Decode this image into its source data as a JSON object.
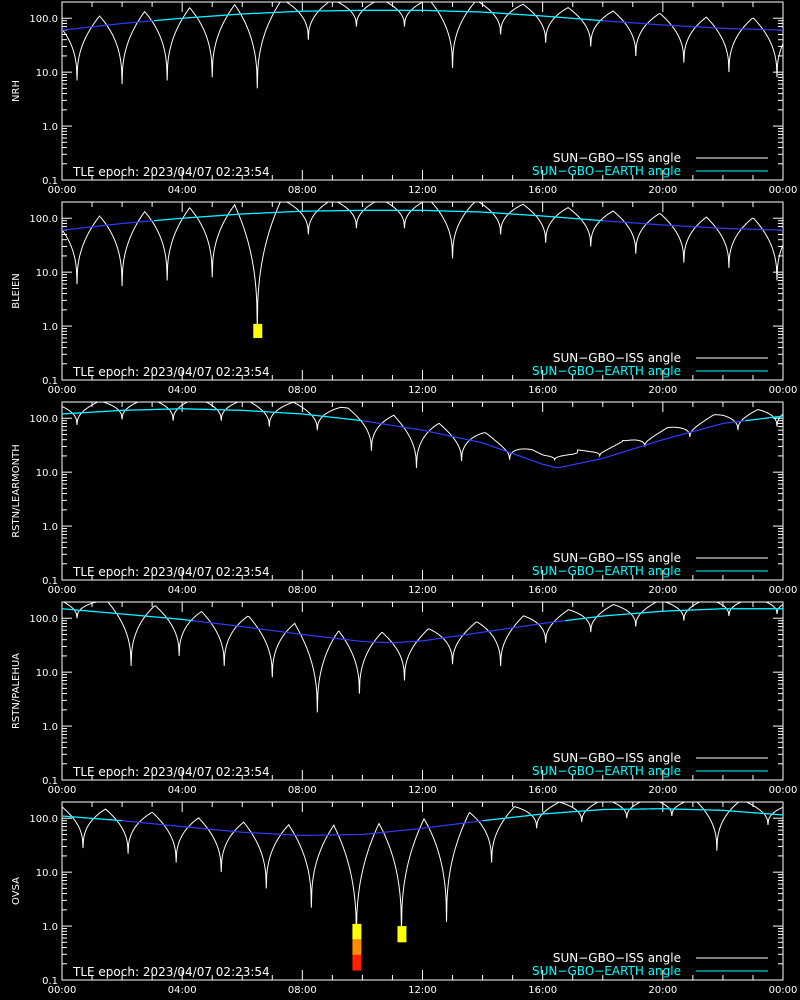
{
  "chart_data": [
    {
      "type": "line",
      "ylabel": "NRH",
      "epoch_label": "TLE epoch: 2023/04/07 02:23:54",
      "legend": [
        {
          "name": "SUN−GBO−ISS angle",
          "color": "#ffffff"
        },
        {
          "name": "SUN−GBO−EARTH angle",
          "color": "#00ffff"
        }
      ],
      "xlim": [
        0,
        24
      ],
      "ylim": [
        0.1,
        200
      ],
      "yscale": "log",
      "xticks": [
        "00:00",
        "04:00",
        "08:00",
        "12:00",
        "16:00",
        "20:00",
        "00:00"
      ],
      "yticks": [
        "0.1",
        "1.0",
        "10.0",
        "100.0"
      ],
      "earth": {
        "x": [
          0,
          2,
          4,
          6,
          8,
          10,
          12,
          14,
          16,
          18,
          20,
          22,
          24
        ],
        "y": [
          60,
          80,
          100,
          120,
          135,
          140,
          140,
          130,
          110,
          90,
          75,
          65,
          60
        ]
      },
      "iss_minima": [
        [
          0.5,
          7
        ],
        [
          2,
          6
        ],
        [
          3.5,
          7
        ],
        [
          5,
          8
        ],
        [
          6.5,
          5
        ],
        [
          8.2,
          40
        ],
        [
          9.8,
          70
        ],
        [
          11.4,
          70
        ],
        [
          13,
          12
        ],
        [
          14.6,
          50
        ],
        [
          16.1,
          35
        ],
        [
          17.6,
          30
        ],
        [
          19.1,
          20
        ],
        [
          20.7,
          15
        ],
        [
          22.2,
          10
        ],
        [
          23.8,
          8
        ]
      ],
      "markers": []
    },
    {
      "type": "line",
      "ylabel": "BLEIEN",
      "epoch_label": "TLE epoch: 2023/04/07 02:23:54",
      "legend": [
        {
          "name": "SUN−GBO−ISS angle",
          "color": "#ffffff"
        },
        {
          "name": "SUN−GBO−EARTH angle",
          "color": "#00ffff"
        }
      ],
      "xlim": [
        0,
        24
      ],
      "ylim": [
        0.1,
        200
      ],
      "yscale": "log",
      "xticks": [
        "00:00",
        "04:00",
        "08:00",
        "12:00",
        "16:00",
        "20:00",
        "00:00"
      ],
      "yticks": [
        "0.1",
        "1.0",
        "10.0",
        "100.0"
      ],
      "earth": {
        "x": [
          0,
          2,
          4,
          6,
          8,
          10,
          12,
          14,
          16,
          18,
          20,
          22,
          24
        ],
        "y": [
          60,
          80,
          100,
          120,
          135,
          140,
          140,
          130,
          110,
          90,
          75,
          65,
          60
        ]
      },
      "iss_minima": [
        [
          0.5,
          6
        ],
        [
          2,
          5.5
        ],
        [
          3.5,
          7
        ],
        [
          5,
          8
        ],
        [
          6.5,
          0.9
        ],
        [
          8.2,
          50
        ],
        [
          9.8,
          65
        ],
        [
          11.4,
          65
        ],
        [
          13,
          18
        ],
        [
          14.6,
          50
        ],
        [
          16.1,
          35
        ],
        [
          17.6,
          30
        ],
        [
          19.1,
          22
        ],
        [
          20.7,
          15
        ],
        [
          22.2,
          12
        ],
        [
          23.8,
          7
        ]
      ],
      "markers": [
        {
          "x": 6.5,
          "y_lo": 0.6,
          "y_hi": 1.1,
          "color": "#ffff00"
        }
      ]
    },
    {
      "type": "line",
      "ylabel": "RSTN/LEARMONTH",
      "epoch_label": "TLE epoch: 2023/04/07 02:23:54",
      "legend": [
        {
          "name": "SUN−GBO−ISS angle",
          "color": "#ffffff"
        },
        {
          "name": "SUN−GBO−EARTH angle",
          "color": "#00ffff"
        }
      ],
      "xlim": [
        0,
        24
      ],
      "ylim": [
        0.1,
        200
      ],
      "yscale": "log",
      "xticks": [
        "00:00",
        "04:00",
        "08:00",
        "12:00",
        "16:00",
        "20:00",
        "00:00"
      ],
      "yticks": [
        "0.1",
        "1.0",
        "10.0",
        "100.0"
      ],
      "earth": {
        "x": [
          0,
          2,
          4,
          6,
          8,
          10,
          12,
          14,
          16,
          16.5,
          18,
          20,
          22,
          24
        ],
        "y": [
          120,
          140,
          150,
          140,
          120,
          90,
          60,
          35,
          14,
          12,
          18,
          40,
          80,
          110
        ]
      },
      "iss_minima": [
        [
          0.5,
          75
        ],
        [
          2,
          95
        ],
        [
          3.7,
          90
        ],
        [
          5.3,
          90
        ],
        [
          6.9,
          70
        ],
        [
          8.5,
          60
        ],
        [
          10.3,
          25
        ],
        [
          11.8,
          12
        ],
        [
          13.3,
          16
        ],
        [
          14.9,
          17
        ],
        [
          16.4,
          17
        ],
        [
          17.9,
          20
        ],
        [
          19.4,
          30
        ],
        [
          20.9,
          45
        ],
        [
          22.5,
          60
        ],
        [
          23.8,
          70
        ]
      ],
      "markers": []
    },
    {
      "type": "line",
      "ylabel": "RSTN/PALEHUA",
      "epoch_label": "TLE epoch: 2023/04/07 02:23:54",
      "legend": [
        {
          "name": "SUN−GBO−ISS angle",
          "color": "#ffffff"
        },
        {
          "name": "SUN−GBO−EARTH angle",
          "color": "#00ffff"
        }
      ],
      "xlim": [
        0,
        24
      ],
      "ylim": [
        0.1,
        200
      ],
      "yscale": "log",
      "xticks": [
        "00:00",
        "04:00",
        "08:00",
        "12:00",
        "16:00",
        "20:00",
        "00:00"
      ],
      "yticks": [
        "0.1",
        "1.0",
        "10.0",
        "100.0"
      ],
      "earth": {
        "x": [
          0,
          2,
          4,
          6,
          8,
          10,
          11,
          12,
          14,
          16,
          18,
          20,
          22,
          24
        ],
        "y": [
          150,
          120,
          95,
          70,
          50,
          37,
          35,
          38,
          55,
          80,
          110,
          135,
          150,
          150
        ]
      },
      "iss_minima": [
        [
          0.5,
          100
        ],
        [
          2.3,
          13
        ],
        [
          3.9,
          20
        ],
        [
          5.4,
          13
        ],
        [
          7,
          8
        ],
        [
          8.5,
          1.8
        ],
        [
          9.9,
          4
        ],
        [
          11.4,
          7
        ],
        [
          13,
          14
        ],
        [
          14.6,
          13
        ],
        [
          16.1,
          35
        ],
        [
          17.6,
          55
        ],
        [
          19.1,
          70
        ],
        [
          20.7,
          90
        ],
        [
          22.2,
          110
        ],
        [
          23.8,
          120
        ]
      ],
      "markers": []
    },
    {
      "type": "line",
      "ylabel": "OVSA",
      "epoch_label": "TLE epoch: 2023/04/07 02:23:54",
      "legend": [
        {
          "name": "SUN−GBO−ISS angle",
          "color": "#ffffff"
        },
        {
          "name": "SUN−GBO−EARTH angle",
          "color": "#00ffff"
        }
      ],
      "xlim": [
        0,
        24
      ],
      "ylim": [
        0.1,
        200
      ],
      "yscale": "log",
      "xticks": [
        "00:00",
        "04:00",
        "08:00",
        "12:00",
        "16:00",
        "20:00",
        "00:00"
      ],
      "yticks": [
        "0.1",
        "1.0",
        "10.0",
        "100.0"
      ],
      "earth": {
        "x": [
          0,
          2,
          4,
          6,
          8,
          10,
          12,
          14,
          16,
          18,
          20,
          22,
          24
        ],
        "y": [
          110,
          90,
          70,
          55,
          48,
          50,
          65,
          90,
          120,
          145,
          150,
          140,
          115
        ]
      },
      "iss_minima": [
        [
          0.7,
          28
        ],
        [
          2.2,
          22
        ],
        [
          3.8,
          15
        ],
        [
          5.3,
          10
        ],
        [
          6.8,
          5
        ],
        [
          8.3,
          2.2
        ],
        [
          9.8,
          0.6
        ],
        [
          11.3,
          0.8
        ],
        [
          12.8,
          1.2
        ],
        [
          14.3,
          15
        ],
        [
          15.8,
          65
        ],
        [
          17.3,
          85
        ],
        [
          18.8,
          100
        ],
        [
          20.3,
          110
        ],
        [
          21.8,
          25
        ],
        [
          23.5,
          75
        ]
      ],
      "markers": [
        {
          "x": 9.8,
          "y_lo": 0.15,
          "y_hi": 1.1,
          "color": "#ff2000"
        },
        {
          "x": 11.3,
          "y_lo": 0.5,
          "y_hi": 1.0,
          "color": "#ffff00"
        }
      ]
    }
  ]
}
